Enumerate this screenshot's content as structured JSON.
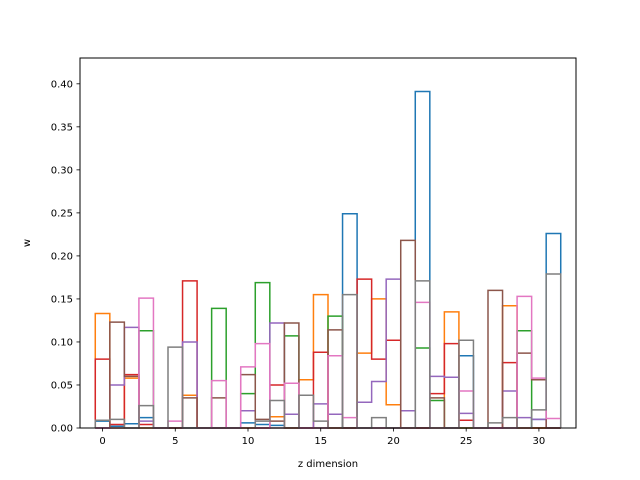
{
  "chart_data": {
    "type": "step-histogram",
    "xlabel": "z dimension",
    "ylabel": "w",
    "xlim": [
      -1.55,
      32.55
    ],
    "ylim": [
      0,
      0.43
    ],
    "xticks": [
      0,
      5,
      10,
      15,
      20,
      25,
      30
    ],
    "yticks": [
      0.0,
      0.05,
      0.1,
      0.15,
      0.2,
      0.25,
      0.3,
      0.35,
      0.4
    ],
    "ytick_labels": [
      "0.00",
      "0.05",
      "0.10",
      "0.15",
      "0.20",
      "0.25",
      "0.30",
      "0.35",
      "0.40"
    ],
    "bin_edges": [
      -0.5,
      0.5,
      1.5,
      2.5,
      3.5,
      4.5,
      5.5,
      6.5,
      7.5,
      8.5,
      9.5,
      10.5,
      11.5,
      12.5,
      13.5,
      14.5,
      15.5,
      16.5,
      17.5,
      18.5,
      19.5,
      20.5,
      21.5,
      22.5,
      23.5,
      24.5,
      25.5,
      26.5,
      27.5,
      28.5,
      29.5,
      30.5,
      31.5
    ],
    "grid": false,
    "series": [
      {
        "color": "#1f77b4",
        "values": [
          0.008,
          0.002,
          0.005,
          0.012,
          0.0,
          0.0,
          0.0,
          0.0,
          0.0,
          0.0,
          0.006,
          0.004,
          0.003,
          0.0,
          0.0,
          0.0,
          0.0,
          0.249,
          0.0,
          0.0,
          0.0,
          0.0,
          0.391,
          0.0,
          0.0,
          0.084,
          0.0,
          0.0,
          0.0,
          0.0,
          0.01,
          0.226
        ]
      },
      {
        "color": "#ff7f0e",
        "values": [
          0.133,
          0.0,
          0.058,
          0.0,
          0.0,
          0.0,
          0.038,
          0.0,
          0.0,
          0.0,
          0.0,
          0.0,
          0.013,
          0.0,
          0.056,
          0.155,
          0.0,
          0.0,
          0.087,
          0.15,
          0.027,
          0.0,
          0.0,
          0.0,
          0.135,
          0.0,
          0.0,
          0.0,
          0.142,
          0.0,
          0.0,
          0.0
        ]
      },
      {
        "color": "#2ca02c",
        "values": [
          0.0,
          0.0,
          0.0,
          0.113,
          0.0,
          0.0,
          0.0,
          0.0,
          0.139,
          0.0,
          0.04,
          0.169,
          0.0,
          0.107,
          0.0,
          0.0,
          0.13,
          0.0,
          0.0,
          0.0,
          0.0,
          0.0,
          0.093,
          0.032,
          0.0,
          0.0,
          0.0,
          0.0,
          0.0,
          0.113,
          0.0,
          0.0
        ]
      },
      {
        "color": "#d62728",
        "values": [
          0.08,
          0.004,
          0.062,
          0.004,
          0.0,
          0.0,
          0.171,
          0.0,
          0.0,
          0.0,
          0.0,
          0.0,
          0.05,
          0.0,
          0.0,
          0.088,
          0.0,
          0.0,
          0.173,
          0.08,
          0.102,
          0.0,
          0.0,
          0.04,
          0.098,
          0.009,
          0.0,
          0.0,
          0.076,
          0.0,
          0.0,
          0.0
        ]
      },
      {
        "color": "#9467bd",
        "values": [
          0.0,
          0.05,
          0.117,
          0.008,
          0.0,
          0.0,
          0.1,
          0.0,
          0.0,
          0.0,
          0.02,
          0.0,
          0.122,
          0.016,
          0.0,
          0.028,
          0.016,
          0.0,
          0.03,
          0.054,
          0.173,
          0.02,
          0.0,
          0.06,
          0.059,
          0.017,
          0.0,
          0.0,
          0.043,
          0.012,
          0.01,
          0.0
        ]
      },
      {
        "color": "#8c564b",
        "values": [
          0.0,
          0.123,
          0.06,
          0.0,
          0.0,
          0.0,
          0.035,
          0.0,
          0.035,
          0.0,
          0.062,
          0.01,
          0.008,
          0.122,
          0.0,
          0.0,
          0.114,
          0.0,
          0.0,
          0.0,
          0.0,
          0.218,
          0.0,
          0.035,
          0.0,
          0.0,
          0.0,
          0.16,
          0.0,
          0.087,
          0.056,
          0.0
        ]
      },
      {
        "color": "#e377c2",
        "values": [
          0.0,
          0.0,
          0.0,
          0.151,
          0.0,
          0.008,
          0.0,
          0.0,
          0.055,
          0.0,
          0.071,
          0.098,
          0.0,
          0.052,
          0.0,
          0.0,
          0.084,
          0.012,
          0.0,
          0.0,
          0.0,
          0.0,
          0.146,
          0.0,
          0.0,
          0.043,
          0.0,
          0.0,
          0.0,
          0.153,
          0.058,
          0.011
        ]
      },
      {
        "color": "#7f7f7f",
        "values": [
          0.009,
          0.01,
          0.0,
          0.026,
          0.0,
          0.094,
          0.0,
          0.0,
          0.0,
          0.0,
          0.0,
          0.008,
          0.032,
          0.0,
          0.038,
          0.008,
          0.0,
          0.155,
          0.0,
          0.012,
          0.0,
          0.0,
          0.171,
          0.0,
          0.0,
          0.102,
          0.0,
          0.006,
          0.012,
          0.0,
          0.021,
          0.179
        ]
      }
    ]
  }
}
